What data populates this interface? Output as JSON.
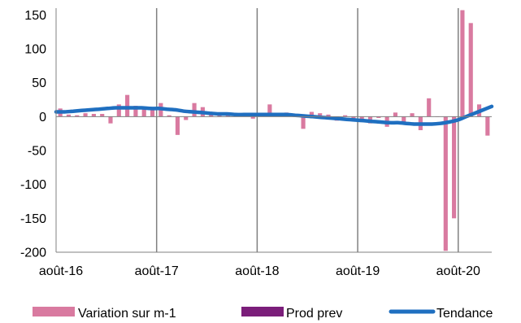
{
  "chart_data": {
    "type": "bar",
    "title": "",
    "xlabel": "",
    "ylabel": "",
    "ylim": [
      -200,
      160
    ],
    "yticks": [
      150,
      100,
      50,
      0,
      -50,
      -100,
      -150,
      -200
    ],
    "xtick_labels": [
      "août-16",
      "août-17",
      "août-18",
      "août-19",
      "août-20"
    ],
    "start_month": "2016-08",
    "grid": "vertical",
    "legend_position": "bottom",
    "series": [
      {
        "name": "Variation sur m-1",
        "type": "bar",
        "color": "#D97AA0",
        "values": [
          12,
          3,
          2,
          5,
          4,
          4,
          -10,
          18,
          32,
          16,
          13,
          12,
          20,
          2,
          -27,
          -5,
          20,
          14,
          5,
          3,
          2,
          4,
          1,
          -3,
          2,
          18,
          4,
          6,
          2,
          -18,
          7,
          5,
          3,
          -6,
          2,
          -3,
          -8,
          -10,
          -2,
          -15,
          6,
          -8,
          5,
          -20,
          27,
          0,
          -198,
          -150,
          157,
          138,
          18,
          -28
        ]
      },
      {
        "name": "Prod prev",
        "type": "bar",
        "color": "#7B1E7A",
        "values": []
      },
      {
        "name": "Tendance",
        "type": "line",
        "color": "#1F6FC0",
        "values": [
          7,
          7,
          8,
          9,
          10,
          11,
          12,
          13,
          13,
          13,
          13,
          12,
          12,
          11,
          10,
          8,
          7,
          6,
          5,
          4,
          4,
          3,
          3,
          3,
          3,
          3,
          3,
          3,
          2,
          1,
          0,
          -1,
          -2,
          -3,
          -4,
          -5,
          -6,
          -7,
          -8,
          -9,
          -9,
          -10,
          -11,
          -11,
          -11,
          -10,
          -8,
          -5,
          0,
          5,
          10,
          15
        ]
      }
    ]
  }
}
